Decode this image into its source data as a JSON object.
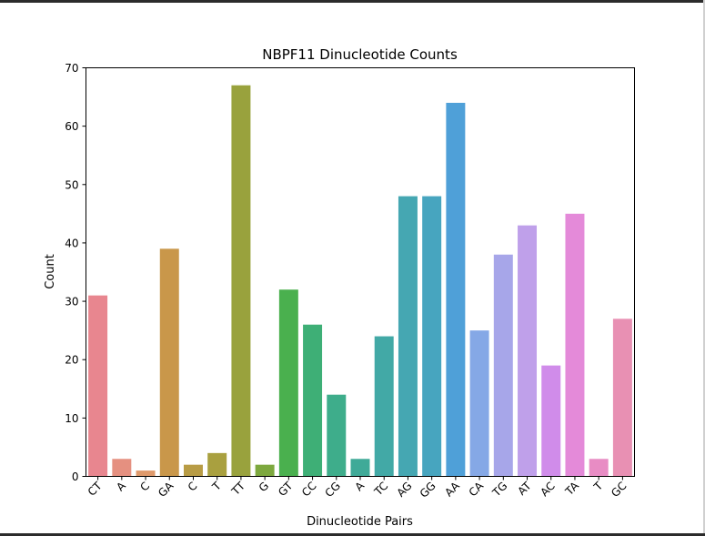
{
  "chart_data": {
    "type": "bar",
    "title": "NBPF11 Dinucleotide Counts",
    "xlabel": "Dinucleotide Pairs",
    "ylabel": "Count",
    "ylim": [
      0,
      70
    ],
    "yticks": [
      0,
      10,
      20,
      30,
      40,
      50,
      60,
      70
    ],
    "grid": false,
    "categories": [
      "CT",
      "A",
      "C",
      "GA",
      "C",
      "T",
      "TT",
      "G",
      "GT",
      "CC",
      "CG",
      "A",
      "TC",
      "AG",
      "GG",
      "AA",
      "CA",
      "TG",
      "AT",
      "AC",
      "TA",
      "T",
      "GC"
    ],
    "values": [
      31,
      3,
      1,
      39,
      2,
      4,
      67,
      2,
      32,
      26,
      14,
      3,
      24,
      48,
      48,
      64,
      25,
      38,
      43,
      19,
      45,
      3,
      27
    ],
    "colors": [
      "#e8868f",
      "#e59080",
      "#df9a6c",
      "#c9974a",
      "#b89c45",
      "#a9a03f",
      "#99a23d",
      "#7da83e",
      "#4ab04e",
      "#3eaf76",
      "#3ead8b",
      "#3faa98",
      "#42a9a6",
      "#45a7b2",
      "#47a5bf",
      "#4fa0d8",
      "#85a8e6",
      "#a7a6e9",
      "#bfa0ea",
      "#d08cea",
      "#e48ad9",
      "#e88cc4",
      "#e890b3"
    ]
  }
}
